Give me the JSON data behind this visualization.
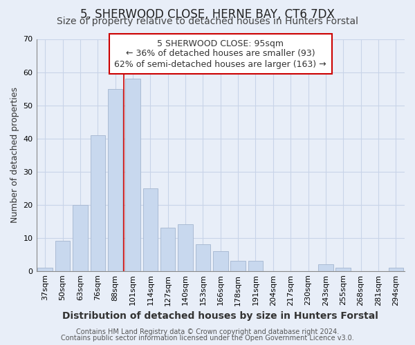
{
  "title": "5, SHERWOOD CLOSE, HERNE BAY, CT6 7DX",
  "subtitle": "Size of property relative to detached houses in Hunters Forstal",
  "xlabel": "Distribution of detached houses by size in Hunters Forstal",
  "ylabel": "Number of detached properties",
  "footer_lines": [
    "Contains HM Land Registry data © Crown copyright and database right 2024.",
    "Contains public sector information licensed under the Open Government Licence v3.0."
  ],
  "bar_labels": [
    "37sqm",
    "50sqm",
    "63sqm",
    "76sqm",
    "88sqm",
    "101sqm",
    "114sqm",
    "127sqm",
    "140sqm",
    "153sqm",
    "166sqm",
    "178sqm",
    "191sqm",
    "204sqm",
    "217sqm",
    "230sqm",
    "243sqm",
    "255sqm",
    "268sqm",
    "281sqm",
    "294sqm"
  ],
  "bar_values": [
    1,
    9,
    20,
    41,
    55,
    58,
    25,
    13,
    14,
    8,
    6,
    3,
    3,
    0,
    0,
    0,
    2,
    1,
    0,
    0,
    1
  ],
  "bar_color": "#c8d8ee",
  "bar_edge_color": "#aabbd4",
  "highlight_bar_index": 4,
  "highlight_line_color": "#cc0000",
  "ylim": [
    0,
    70
  ],
  "yticks": [
    0,
    10,
    20,
    30,
    40,
    50,
    60,
    70
  ],
  "annotation_box_text": "5 SHERWOOD CLOSE: 95sqm\n← 36% of detached houses are smaller (93)\n62% of semi-detached houses are larger (163) →",
  "background_color": "#e8eef8",
  "plot_bg_color": "#e8eef8",
  "grid_color": "#c8d4e8",
  "title_fontsize": 12,
  "subtitle_fontsize": 10,
  "xlabel_fontsize": 10,
  "ylabel_fontsize": 9,
  "tick_fontsize": 8,
  "annotation_fontsize": 9,
  "footer_fontsize": 7
}
